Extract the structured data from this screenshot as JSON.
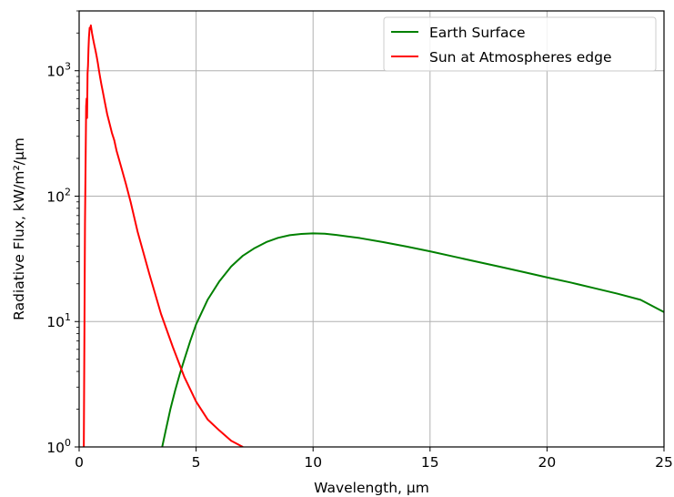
{
  "chart_data": {
    "type": "line",
    "xlabel": "Wavelength, μm",
    "ylabel": "Radiative Flux, kW/m²/μm",
    "xlim": [
      0,
      25
    ],
    "ylim": [
      1,
      3000
    ],
    "yscale": "log",
    "grid": true,
    "legend_position": "top-right",
    "x_ticks": [
      {
        "value": 0,
        "label": "0"
      },
      {
        "value": 5,
        "label": "5"
      },
      {
        "value": 10,
        "label": "10"
      },
      {
        "value": 15,
        "label": "15"
      },
      {
        "value": 20,
        "label": "20"
      },
      {
        "value": 25,
        "label": "25"
      }
    ],
    "y_ticks": [
      {
        "value": 1,
        "base": "10",
        "exp": "0"
      },
      {
        "value": 10,
        "base": "10",
        "exp": "1"
      },
      {
        "value": 100,
        "base": "10",
        "exp": "2"
      },
      {
        "value": 1000,
        "base": "10",
        "exp": "3"
      }
    ],
    "series": [
      {
        "name": "Earth Surface",
        "color": "#008000",
        "x": [
          3.55,
          3.7,
          3.9,
          4.1,
          4.3,
          4.5,
          4.75,
          5.0,
          5.5,
          6.0,
          6.5,
          7.0,
          7.5,
          8.0,
          8.5,
          9.0,
          9.5,
          10.0,
          10.5,
          11.0,
          12.0,
          13.0,
          14.0,
          15.0,
          16.0,
          17.0,
          18.0,
          19.0,
          20.0,
          21.0,
          22.0,
          23.0,
          24.0,
          25.0
        ],
        "y": [
          1.0,
          1.35,
          2.0,
          2.8,
          3.8,
          5.0,
          7.0,
          9.5,
          15.0,
          21.0,
          27.5,
          33.5,
          38.5,
          43.0,
          46.5,
          48.8,
          50.0,
          50.5,
          50.2,
          49.0,
          46.3,
          43.0,
          39.6,
          36.3,
          33.0,
          30.0,
          27.3,
          24.8,
          22.5,
          20.5,
          18.5,
          16.7,
          14.9,
          11.9
        ]
      },
      {
        "name": "Sun at Atmospheres edge",
        "color": "#ff0000",
        "x": [
          0.2,
          0.22,
          0.25,
          0.28,
          0.3,
          0.32,
          0.34,
          0.36,
          0.38,
          0.4,
          0.42,
          0.45,
          0.48,
          0.5,
          0.55,
          0.6,
          0.65,
          0.7,
          0.75,
          0.8,
          0.85,
          0.9,
          0.95,
          1.0,
          1.1,
          1.2,
          1.3,
          1.4,
          1.5,
          1.6,
          1.8,
          2.0,
          2.2,
          2.5,
          3.0,
          3.5,
          4.0,
          4.5,
          5.0,
          5.5,
          6.0,
          6.5,
          7.0
        ],
        "y": [
          1.0,
          5.0,
          60.0,
          220.0,
          520.0,
          600.0,
          420.0,
          950.0,
          1100.0,
          1500.0,
          1850.0,
          2200.0,
          2150.0,
          2300.0,
          2000.0,
          1780.0,
          1600.0,
          1450.0,
          1300.0,
          1150.0,
          1000.0,
          880.0,
          780.0,
          700.0,
          560.0,
          450.0,
          380.0,
          320.0,
          280.0,
          230.0,
          170.0,
          125.0,
          90.0,
          52.0,
          24.0,
          11.5,
          6.3,
          3.6,
          2.3,
          1.65,
          1.35,
          1.12,
          1.0
        ]
      }
    ]
  }
}
